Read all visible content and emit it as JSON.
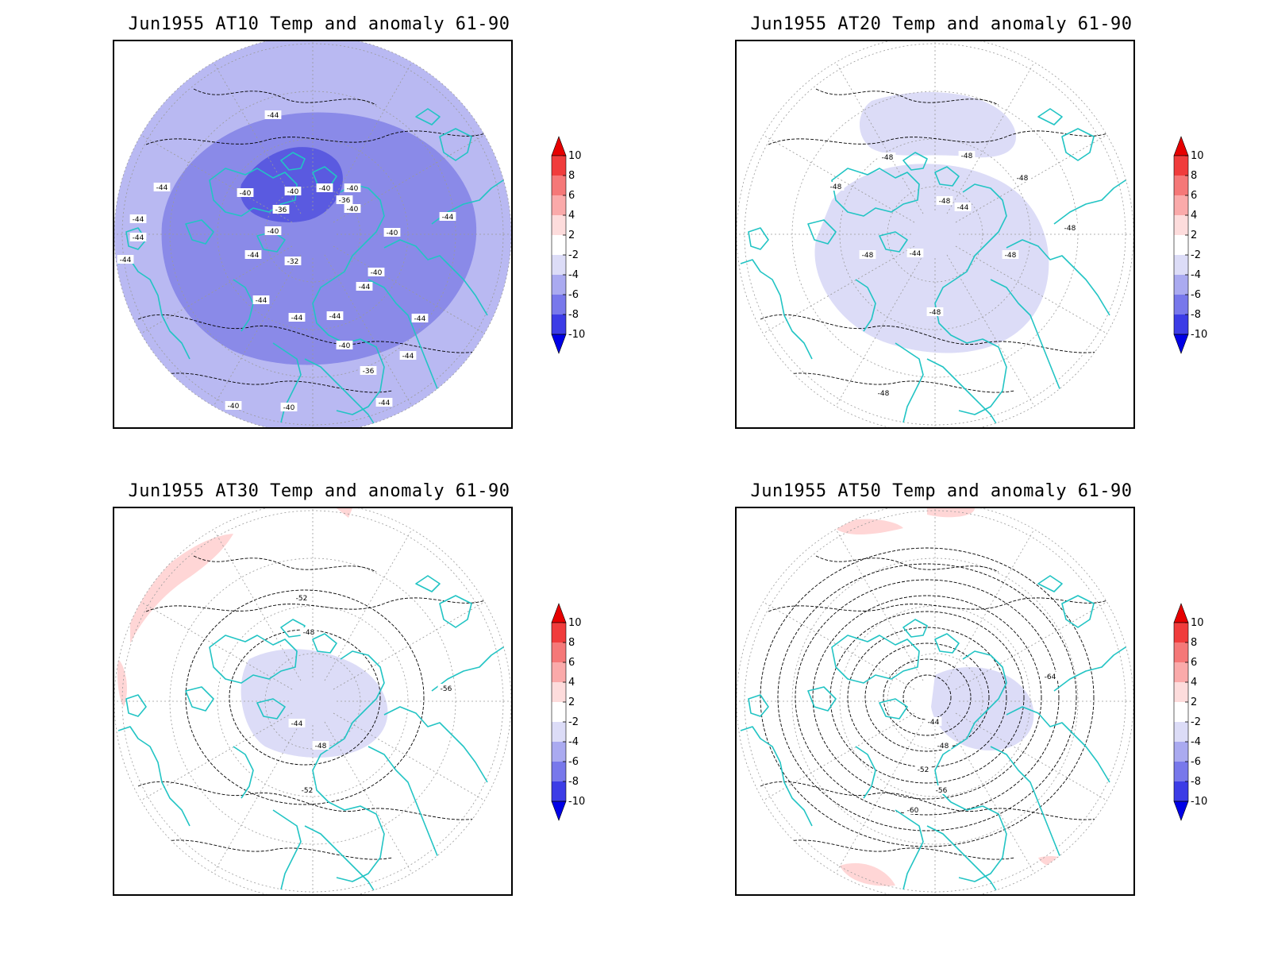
{
  "panels": [
    {
      "title": "Jun1955 AT10 Temp and anomaly 61-90",
      "fill": "#b9b9f2",
      "core_fill": "#8a8ae8",
      "deep_fill": "#5a5ae0",
      "contour_labels": [
        "-44",
        "-44",
        "-44",
        "-44",
        "-44",
        "-40",
        "-40",
        "-40",
        "-36",
        "-40",
        "-36",
        "-40",
        "-32",
        "-40",
        "-44",
        "-44",
        "-44",
        "-44",
        "-40",
        "-40",
        "-44",
        "-44",
        "-44",
        "-40",
        "-44",
        "-36",
        "-40",
        "-40",
        "-44"
      ]
    },
    {
      "title": "Jun1955 AT20 Temp and anomaly 61-90",
      "fill": "#dcdcf7",
      "contour_labels": [
        "-48",
        "-48",
        "-48",
        "-48",
        "-44",
        "-44",
        "-48",
        "-48",
        "-48",
        "-48",
        "-48",
        "-48"
      ]
    },
    {
      "title": "Jun1955 AT30 Temp and anomaly 61-90",
      "fill": "#dcdcf7",
      "warm_fill": "#ffd6d6",
      "contour_labels": [
        "-52",
        "-48",
        "-44",
        "-48",
        "-52",
        "-56"
      ]
    },
    {
      "title": "Jun1955 AT50 Temp and anomaly 61-90",
      "fill": "#dcdcf7",
      "warm_fill": "#ffd6d6",
      "contour_labels": [
        "-44",
        "-48",
        "-52",
        "-56",
        "-60",
        "-64"
      ]
    }
  ],
  "colorbar": {
    "ticks": [
      "10",
      "8",
      "6",
      "4",
      "2",
      "-2",
      "-4",
      "-6",
      "-8",
      "-10"
    ],
    "colors": [
      "#e60000",
      "#f03c3c",
      "#f57878",
      "#faaaaa",
      "#fddcdc",
      "#ffffff",
      "#dcdcf7",
      "#aaaaf0",
      "#7878eb",
      "#3c3ce6",
      "#0000e6"
    ]
  },
  "colors": {
    "coastline": "#22c4c4",
    "contour": "#000000",
    "grid": "#9a9a9a"
  }
}
